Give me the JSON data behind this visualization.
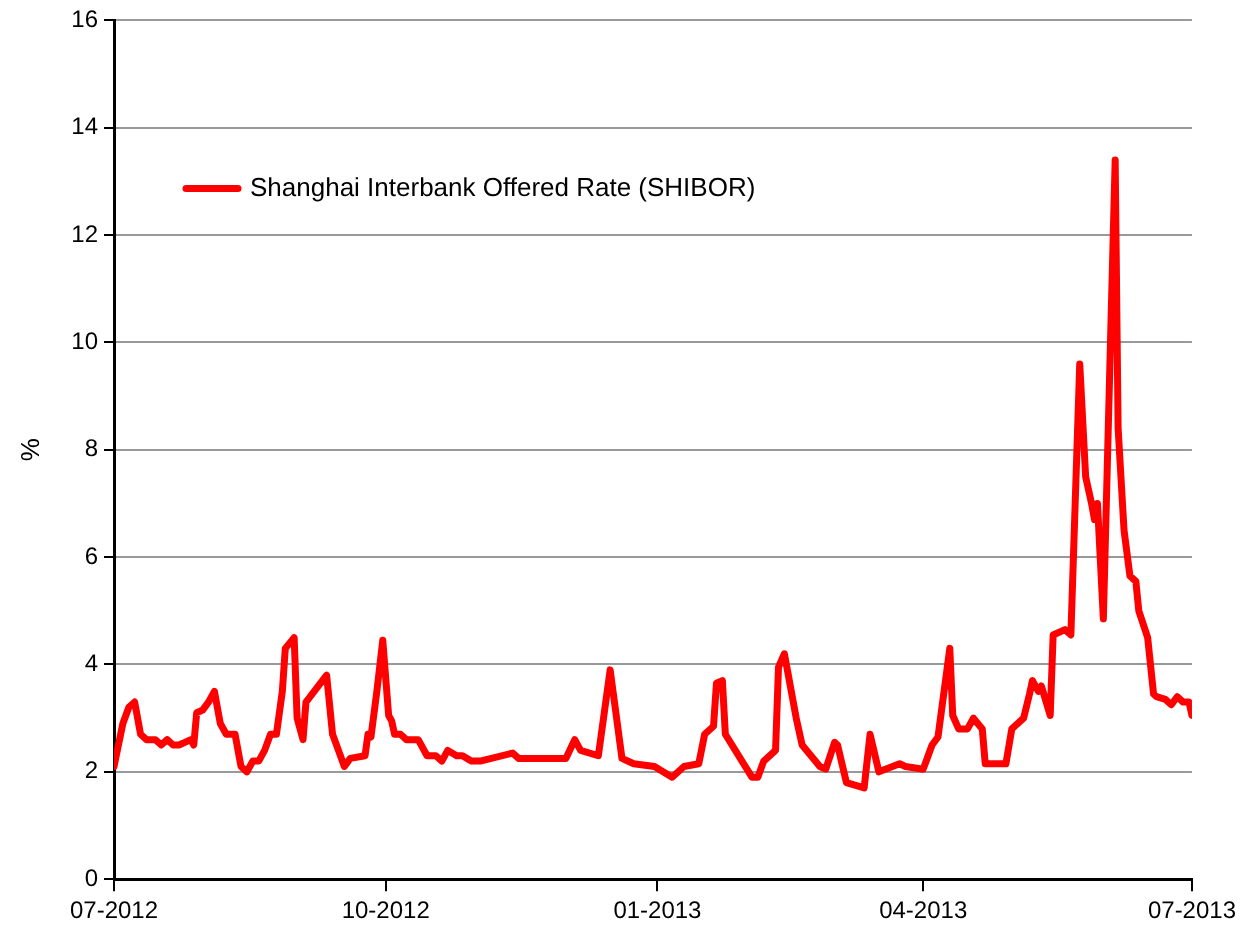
{
  "chart_data": {
    "type": "line",
    "ylabel": "%",
    "legend": "top left",
    "grid": "y",
    "marker": "none",
    "line_style": "solid",
    "xlim": [
      "2012-07-01",
      "2013-07-01"
    ],
    "xticks": [
      {
        "value": "2012-07-01",
        "label": "07-2012"
      },
      {
        "value": "2012-10-01",
        "label": "10-2012"
      },
      {
        "value": "2013-01-01",
        "label": "01-2013"
      },
      {
        "value": "2013-04-01",
        "label": "04-2013"
      },
      {
        "value": "2013-07-01",
        "label": "07-2013"
      }
    ],
    "ylim": [
      0,
      16
    ],
    "yticks": [
      0,
      2,
      4,
      6,
      8,
      10,
      12,
      14,
      16
    ],
    "x": [
      "2012-07-01",
      "2012-07-04",
      "2012-07-06",
      "2012-07-08",
      "2012-07-10",
      "2012-07-12",
      "2012-07-15",
      "2012-07-17",
      "2012-07-19",
      "2012-07-21",
      "2012-07-23",
      "2012-07-25",
      "2012-07-27",
      "2012-07-28",
      "2012-07-29",
      "2012-07-31",
      "2012-08-02",
      "2012-08-04",
      "2012-08-06",
      "2012-08-08",
      "2012-08-11",
      "2012-08-13",
      "2012-08-15",
      "2012-08-17",
      "2012-08-19",
      "2012-08-21",
      "2012-08-23",
      "2012-08-25",
      "2012-08-27",
      "2012-08-28",
      "2012-08-31",
      "2012-09-01",
      "2012-09-03",
      "2012-09-04",
      "2012-09-11",
      "2012-09-13",
      "2012-09-15",
      "2012-09-17",
      "2012-09-19",
      "2012-09-24",
      "2012-09-25",
      "2012-09-26",
      "2012-09-28",
      "2012-09-30",
      "2012-10-02",
      "2012-10-03",
      "2012-10-04",
      "2012-10-06",
      "2012-10-08",
      "2012-10-10",
      "2012-10-12",
      "2012-10-15",
      "2012-10-18",
      "2012-10-20",
      "2012-10-22",
      "2012-10-25",
      "2012-10-27",
      "2012-10-30",
      "2012-11-02",
      "2012-11-13",
      "2012-11-15",
      "2012-12-01",
      "2012-12-04",
      "2012-12-06",
      "2012-12-12",
      "2012-12-16",
      "2012-12-20",
      "2012-12-24",
      "2012-12-31",
      "2013-01-06",
      "2013-01-10",
      "2013-01-15",
      "2013-01-17",
      "2013-01-20",
      "2013-01-21",
      "2013-01-23",
      "2013-01-24",
      "2013-02-02",
      "2013-02-04",
      "2013-02-06",
      "2013-02-10",
      "2013-02-11",
      "2013-02-13",
      "2013-02-17",
      "2013-02-19",
      "2013-02-25",
      "2013-02-27",
      "2013-03-02",
      "2013-03-03",
      "2013-03-06",
      "2013-03-12",
      "2013-03-14",
      "2013-03-17",
      "2013-03-24",
      "2013-03-26",
      "2013-04-01",
      "2013-04-04",
      "2013-04-06",
      "2013-04-10",
      "2013-04-11",
      "2013-04-13",
      "2013-04-16",
      "2013-04-18",
      "2013-04-21",
      "2013-04-22",
      "2013-04-29",
      "2013-05-01",
      "2013-05-05",
      "2013-05-07",
      "2013-05-08",
      "2013-05-10",
      "2013-05-11",
      "2013-05-14",
      "2013-05-15",
      "2013-05-19",
      "2013-05-21",
      "2013-05-24",
      "2013-05-26",
      "2013-05-28",
      "2013-05-29",
      "2013-05-30",
      "2013-06-01",
      "2013-06-05",
      "2013-06-06",
      "2013-06-08",
      "2013-06-10",
      "2013-06-12",
      "2013-06-13",
      "2013-06-16",
      "2013-06-18",
      "2013-06-19",
      "2013-06-22",
      "2013-06-24",
      "2013-06-26",
      "2013-06-28",
      "2013-06-30",
      "2013-07-01"
    ],
    "series": [
      {
        "name": "Shanghai Interbank Offered Rate (SHIBOR)",
        "color": "#ff0000",
        "values": [
          2.1,
          2.9,
          3.2,
          3.3,
          2.7,
          2.6,
          2.6,
          2.5,
          2.6,
          2.5,
          2.5,
          2.55,
          2.6,
          2.5,
          3.1,
          3.15,
          3.3,
          3.5,
          2.9,
          2.7,
          2.7,
          2.1,
          2.0,
          2.2,
          2.2,
          2.4,
          2.7,
          2.7,
          3.5,
          4.3,
          4.5,
          3.0,
          2.6,
          3.3,
          3.8,
          2.7,
          2.4,
          2.1,
          2.25,
          2.3,
          2.7,
          2.65,
          3.5,
          4.45,
          3.05,
          2.95,
          2.7,
          2.7,
          2.6,
          2.6,
          2.6,
          2.3,
          2.3,
          2.2,
          2.4,
          2.3,
          2.3,
          2.2,
          2.2,
          2.35,
          2.25,
          2.25,
          2.6,
          2.4,
          2.3,
          3.9,
          2.25,
          2.15,
          2.1,
          1.9,
          2.1,
          2.15,
          2.7,
          2.85,
          3.65,
          3.7,
          2.7,
          1.9,
          1.9,
          2.2,
          2.4,
          3.95,
          4.2,
          3.0,
          2.5,
          2.1,
          2.05,
          2.55,
          2.5,
          1.8,
          1.7,
          2.7,
          2.0,
          2.15,
          2.1,
          2.05,
          2.5,
          2.65,
          4.3,
          3.05,
          2.8,
          2.8,
          3.0,
          2.8,
          2.15,
          2.15,
          2.8,
          3.0,
          3.45,
          3.7,
          3.5,
          3.6,
          3.05,
          4.55,
          4.65,
          4.55,
          9.6,
          7.5,
          7.0,
          6.7,
          7.0,
          4.85,
          13.4,
          8.4,
          6.5,
          5.65,
          5.55,
          5.0,
          4.5,
          3.45,
          3.4,
          3.35,
          3.25,
          3.4,
          3.3,
          3.3,
          3.05
        ]
      }
    ]
  }
}
